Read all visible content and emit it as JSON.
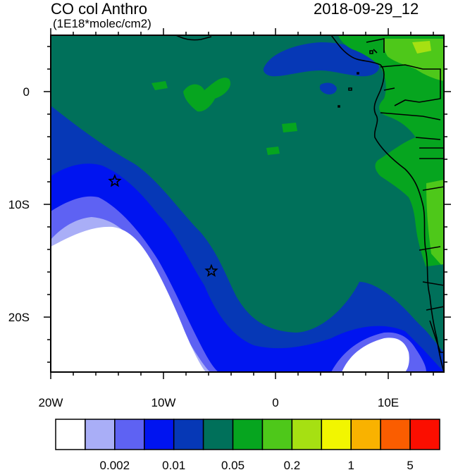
{
  "title": "CO col Anthro",
  "units": "(1E18*molec/cm2)",
  "datetime": "2018-09-29_12",
  "axes": {
    "x_ticks": [
      "20W",
      "10W",
      "0",
      "10E"
    ],
    "y_ticks": [
      "0",
      "10S",
      "20S"
    ]
  },
  "colorbar": {
    "colors": [
      "#ffffff",
      "#a9aef7",
      "#5e62f3",
      "#0014f0",
      "#0638b6",
      "#00705a",
      "#06a51f",
      "#4ec81a",
      "#a6e012",
      "#f2f600",
      "#f9b200",
      "#fa5d00",
      "#fb0e00"
    ],
    "labels": [
      "0.002",
      "0.01",
      "0.05",
      "0.2",
      "1",
      "5"
    ]
  },
  "markers": [
    {
      "name": "star-marker-1",
      "lon": -14.3,
      "lat": -8.0
    },
    {
      "name": "star-marker-2",
      "lon": -5.7,
      "lat": -16.0
    }
  ]
}
